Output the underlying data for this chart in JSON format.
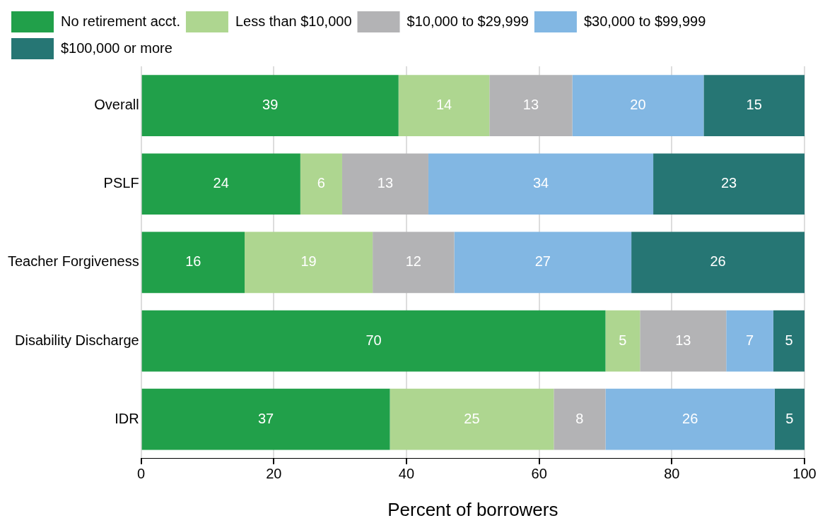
{
  "chart_data": {
    "type": "bar",
    "orientation": "horizontal",
    "stacked": true,
    "xlabel": "Percent of borrowers",
    "categories": [
      "Overall",
      "PSLF",
      "Teacher Forgiveness",
      "Disability Discharge",
      "IDR"
    ],
    "series": [
      {
        "name": "No retirement acct.",
        "color": "#21a04a",
        "values": [
          38.8,
          24.0,
          15.6,
          70.0,
          37.5
        ],
        "value_labels": [
          "39",
          "24",
          "16",
          "70",
          "37"
        ]
      },
      {
        "name": "Less than $10,000",
        "color": "#aed690",
        "values": [
          13.7,
          6.3,
          19.3,
          5.2,
          24.7
        ],
        "value_labels": [
          "14",
          "6",
          "19",
          "5",
          "25"
        ]
      },
      {
        "name": "$10,000 to $29,999",
        "color": "#b3b3b5",
        "values": [
          12.5,
          13.0,
          12.3,
          13.0,
          7.8
        ],
        "value_labels": [
          "13",
          "13",
          "12",
          "13",
          "8"
        ]
      },
      {
        "name": "$30,000 to $99,999",
        "color": "#82b7e3",
        "values": [
          19.8,
          33.9,
          26.7,
          7.1,
          25.5
        ],
        "value_labels": [
          "20",
          "34",
          "27",
          "7",
          "26"
        ]
      },
      {
        "name": "$100,000 or more",
        "color": "#267674",
        "values": [
          15.2,
          22.8,
          26.1,
          4.7,
          4.5
        ],
        "value_labels": [
          "15",
          "23",
          "26",
          "5",
          "5"
        ]
      }
    ],
    "xlim": [
      0,
      100
    ],
    "xticks": [
      0,
      20,
      40,
      60,
      80,
      100
    ],
    "grid": "x",
    "legend": "top"
  }
}
